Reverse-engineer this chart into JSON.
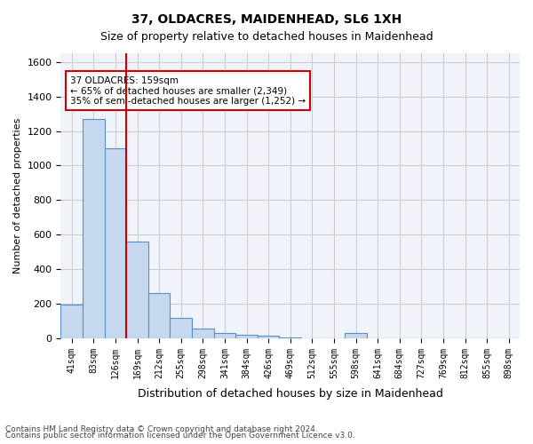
{
  "title1": "37, OLDACRES, MAIDENHEAD, SL6 1XH",
  "title2": "Size of property relative to detached houses in Maidenhead",
  "xlabel": "Distribution of detached houses by size in Maidenhead",
  "ylabel": "Number of detached properties",
  "categories": [
    "41sqm",
    "83sqm",
    "126sqm",
    "169sqm",
    "212sqm",
    "255sqm",
    "298sqm",
    "341sqm",
    "384sqm",
    "426sqm",
    "469sqm",
    "512sqm",
    "555sqm",
    "598sqm",
    "641sqm",
    "684sqm",
    "727sqm",
    "769sqm",
    "812sqm",
    "855sqm",
    "898sqm"
  ],
  "values": [
    197,
    1270,
    1100,
    560,
    262,
    120,
    55,
    30,
    20,
    15,
    5,
    0,
    0,
    30,
    0,
    0,
    0,
    0,
    0,
    0,
    0
  ],
  "bar_color": "#c5d8f0",
  "bar_edge_color": "#5a8fc2",
  "vline_x": 2.5,
  "vline_color": "#cc0000",
  "annotation_text": "37 OLDACRES: 159sqm\n← 65% of detached houses are smaller (2,349)\n35% of semi-detached houses are larger (1,252) →",
  "annotation_box_color": "#ffffff",
  "annotation_box_edge": "#cc0000",
  "ylim": [
    0,
    1650
  ],
  "yticks": [
    0,
    200,
    400,
    600,
    800,
    1000,
    1200,
    1400,
    1600
  ],
  "grid_color": "#cccccc",
  "bg_color": "#f0f4fa",
  "footer1": "Contains HM Land Registry data © Crown copyright and database right 2024.",
  "footer2": "Contains public sector information licensed under the Open Government Licence v3.0."
}
